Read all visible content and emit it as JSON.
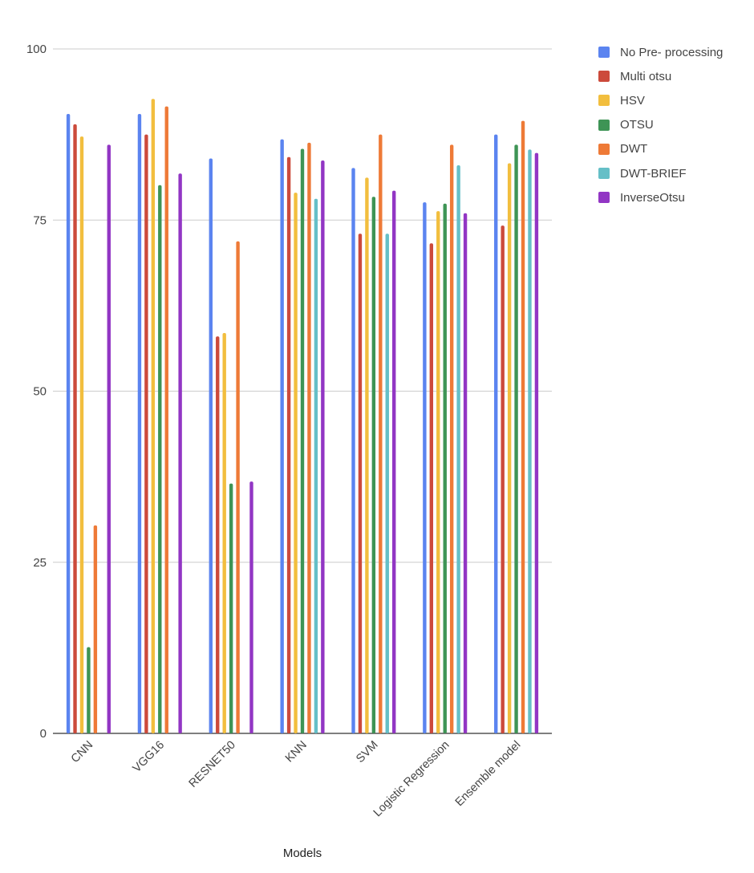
{
  "chart_data": {
    "type": "bar",
    "title": "",
    "xlabel": "Models",
    "ylabel": "",
    "ylim": [
      0,
      100
    ],
    "yticks": [
      0,
      25,
      50,
      75,
      100
    ],
    "grid": true,
    "legend_position": "top-right",
    "categories": [
      "CNN",
      "VGG16",
      "RESNET50",
      "KNN",
      "SVM",
      "Logistic Regression",
      "Ensemble model"
    ],
    "series": [
      {
        "name": "No Pre- processing",
        "color": "#5B84F0",
        "values": [
          90.5,
          90.5,
          84.0,
          86.8,
          82.6,
          77.6,
          87.5
        ]
      },
      {
        "name": "Multi otsu",
        "color": "#CC4A3B",
        "values": [
          89.0,
          87.5,
          58.0,
          84.2,
          73.0,
          71.6,
          74.2
        ]
      },
      {
        "name": "HSV",
        "color": "#F2BE3E",
        "values": [
          87.2,
          92.7,
          58.5,
          79.0,
          81.2,
          76.3,
          83.3
        ]
      },
      {
        "name": "OTSU",
        "color": "#3E9455",
        "values": [
          12.6,
          80.1,
          36.5,
          85.4,
          78.4,
          77.4,
          86.0
        ]
      },
      {
        "name": "DWT",
        "color": "#EE7A37",
        "values": [
          30.4,
          91.6,
          71.9,
          86.3,
          87.5,
          86.0,
          89.5
        ]
      },
      {
        "name": "DWT-BRIEF",
        "color": "#65BFC7",
        "values": [
          null,
          null,
          null,
          78.1,
          73.0,
          83.0,
          85.3
        ]
      },
      {
        "name": "InverseOtsu",
        "color": "#9236C4",
        "values": [
          86.0,
          81.8,
          36.8,
          83.7,
          79.3,
          76.0,
          84.8
        ]
      }
    ]
  }
}
